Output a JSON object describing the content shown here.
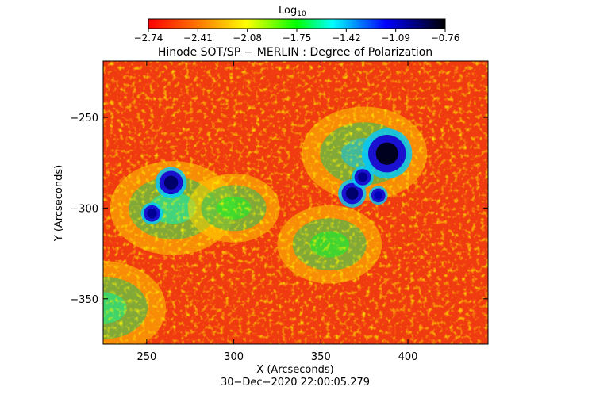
{
  "colorbar": {
    "label": "Log",
    "label_sub": "10",
    "ticks": [
      "−2.74",
      "−2.41",
      "−2.08",
      "−1.75",
      "−1.42",
      "−1.09",
      "−0.76"
    ],
    "stops": [
      "#ff0000",
      "#ff7f00",
      "#ffff00",
      "#00ff00",
      "#00ffff",
      "#0000ff",
      "#000000"
    ]
  },
  "chart_data": {
    "type": "heatmap",
    "title": "Hinode SOT/SP − MERLIN : Degree of Polarization",
    "xlabel": "X (Arcseconds)",
    "ylabel": "Y (Arcseconds)",
    "xlim": [
      225,
      446
    ],
    "ylim": [
      -375,
      -219
    ],
    "xticks": [
      250,
      300,
      350,
      400
    ],
    "yticks": [
      -250,
      -300,
      -350
    ],
    "xtick_labels": [
      "250",
      "300",
      "350",
      "400"
    ],
    "ytick_labels": [
      "−250",
      "−300",
      "−350"
    ],
    "colorbar_range": [
      -2.74,
      -0.76
    ],
    "timestamp": "30−Dec−2020 22:00:05.279",
    "sunspots": [
      {
        "x": 388,
        "y": -270,
        "r": 8,
        "value": -0.8
      },
      {
        "x": 264,
        "y": -286,
        "r": 5,
        "value": -0.9
      },
      {
        "x": 253,
        "y": -303,
        "r": 3.5,
        "value": -0.95
      },
      {
        "x": 368,
        "y": -292,
        "r": 4.5,
        "value": -0.9
      },
      {
        "x": 374,
        "y": -283,
        "r": 3.5,
        "value": -0.95
      },
      {
        "x": 383,
        "y": -293,
        "r": 3,
        "value": -1.0
      }
    ],
    "plage_regions": [
      {
        "x": 375,
        "y": -270,
        "r": 30,
        "value": -1.35
      },
      {
        "x": 265,
        "y": -300,
        "r": 30,
        "value": -1.5
      },
      {
        "x": 225,
        "y": -355,
        "r": 30,
        "value": -1.55
      },
      {
        "x": 300,
        "y": -300,
        "r": 22,
        "value": -1.7
      },
      {
        "x": 355,
        "y": -320,
        "r": 25,
        "value": -1.7
      }
    ]
  }
}
